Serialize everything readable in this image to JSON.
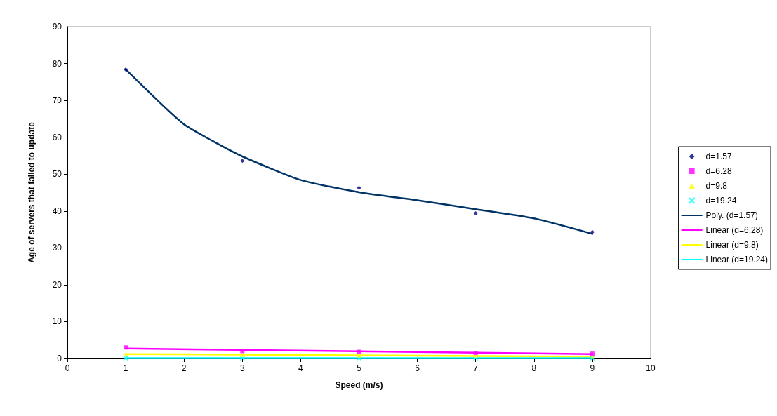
{
  "chart_data": {
    "type": "scatter",
    "xlabel": "Speed (m/s)",
    "ylabel": "Age of servers that failed to update",
    "xlim": [
      0,
      10
    ],
    "xticks": [
      0,
      1,
      2,
      3,
      4,
      5,
      6,
      7,
      8,
      9,
      10
    ],
    "ylim": [
      0,
      90
    ],
    "yticks": [
      0,
      10,
      20,
      30,
      40,
      50,
      60,
      70,
      80,
      90
    ],
    "grid": false,
    "legend": "right",
    "series": [
      {
        "name": "d=1.57",
        "color": "#000080",
        "marker": "diamond",
        "x": [
          1,
          3,
          5,
          7,
          9
        ],
        "values": [
          78.4,
          53.6,
          46.3,
          39.4,
          34.3
        ]
      },
      {
        "name": "d=6.28",
        "color": "#ff00ff",
        "marker": "square",
        "x": [
          1,
          3,
          5,
          7,
          9
        ],
        "values": [
          3.0,
          2.0,
          1.8,
          1.5,
          1.3
        ]
      },
      {
        "name": "d=9.8",
        "color": "#ffff00",
        "marker": "triangle",
        "x": [
          1,
          3,
          5,
          7,
          9
        ],
        "values": [
          1.2,
          1.0,
          0.8,
          0.6,
          0.5
        ]
      },
      {
        "name": "d=19.24",
        "color": "#00ffff",
        "marker": "cross",
        "x": [
          1,
          3,
          5,
          7,
          9
        ],
        "values": [
          0.1,
          0.1,
          0.1,
          0.1,
          0.1
        ]
      },
      {
        "name": "Poly. (d=1.57)",
        "type": "line",
        "color": "#003366",
        "marker": "none",
        "x": [
          1,
          1.5,
          2,
          2.5,
          3,
          4,
          5,
          6,
          7,
          8,
          9
        ],
        "values": [
          78.4,
          70.7,
          63.5,
          58.9,
          54.8,
          48.4,
          45.1,
          42.9,
          40.5,
          38.0,
          33.8
        ]
      },
      {
        "name": "Linear (d=6.28)",
        "type": "line",
        "color": "#ff00ff",
        "marker": "none",
        "x": [
          1,
          9
        ],
        "values": [
          2.7,
          1.2
        ]
      },
      {
        "name": "Linear (d=9.8)",
        "type": "line",
        "color": "#ffff00",
        "marker": "none",
        "x": [
          1,
          9
        ],
        "values": [
          1.2,
          0.5
        ]
      },
      {
        "name": "Linear (d=19.24)",
        "type": "line",
        "color": "#00ffff",
        "marker": "none",
        "x": [
          1,
          9
        ],
        "values": [
          0.1,
          0.1
        ]
      }
    ]
  }
}
